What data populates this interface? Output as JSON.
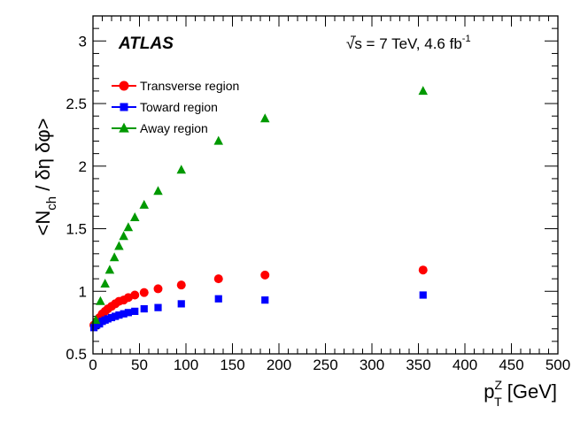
{
  "chart_data": {
    "type": "scatter",
    "experiment_label": "ATLAS",
    "energy_label": "√s = 7 TeV, 4.6 fb",
    "energy_label_sup": "-1",
    "xlabel": {
      "main": "p",
      "sup": "Z",
      "sub": "T",
      "unit": " [GeV]"
    },
    "ylabel": "<N_ch / δη δφ>",
    "xlim": [
      0,
      500
    ],
    "ylim": [
      0.5,
      3.2
    ],
    "xticks": [
      0,
      50,
      100,
      150,
      200,
      250,
      300,
      350,
      400,
      450,
      500
    ],
    "xtick_labels": [
      "0",
      "50",
      "100",
      "150",
      "200",
      "250",
      "300",
      "350",
      "400",
      "450",
      "500"
    ],
    "yticks": [
      0.5,
      1,
      1.5,
      2,
      2.5,
      3
    ],
    "ytick_labels": [
      "0.5",
      "1",
      "1.5",
      "2",
      "2.5",
      "3"
    ],
    "grid": false,
    "legend_position": "top-left",
    "series": [
      {
        "name": "Transverse region",
        "marker": "circle",
        "color": "#ff0000",
        "x": [
          1,
          4,
          7,
          10,
          13,
          16,
          20,
          24,
          28,
          33,
          38,
          45,
          55,
          70,
          95,
          135,
          185,
          355
        ],
        "y": [
          0.73,
          0.76,
          0.79,
          0.82,
          0.84,
          0.86,
          0.88,
          0.9,
          0.92,
          0.93,
          0.95,
          0.97,
          0.99,
          1.02,
          1.05,
          1.1,
          1.13,
          1.17
        ]
      },
      {
        "name": "Toward region",
        "marker": "square",
        "color": "#0000ff",
        "x": [
          1,
          4,
          7,
          10,
          13,
          16,
          20,
          24,
          28,
          33,
          38,
          45,
          55,
          70,
          95,
          135,
          185,
          355
        ],
        "y": [
          0.71,
          0.73,
          0.74,
          0.76,
          0.77,
          0.78,
          0.79,
          0.8,
          0.81,
          0.82,
          0.83,
          0.84,
          0.86,
          0.87,
          0.9,
          0.94,
          0.93,
          0.97
        ]
      },
      {
        "name": "Away region",
        "marker": "triangle",
        "color": "#009900",
        "x": [
          3,
          8,
          13,
          18,
          23,
          28,
          33,
          38,
          45,
          55,
          70,
          95,
          135,
          185,
          355
        ],
        "y": [
          0.77,
          0.92,
          1.06,
          1.17,
          1.27,
          1.36,
          1.44,
          1.51,
          1.59,
          1.69,
          1.8,
          1.97,
          2.2,
          2.38,
          2.6
        ]
      }
    ]
  }
}
